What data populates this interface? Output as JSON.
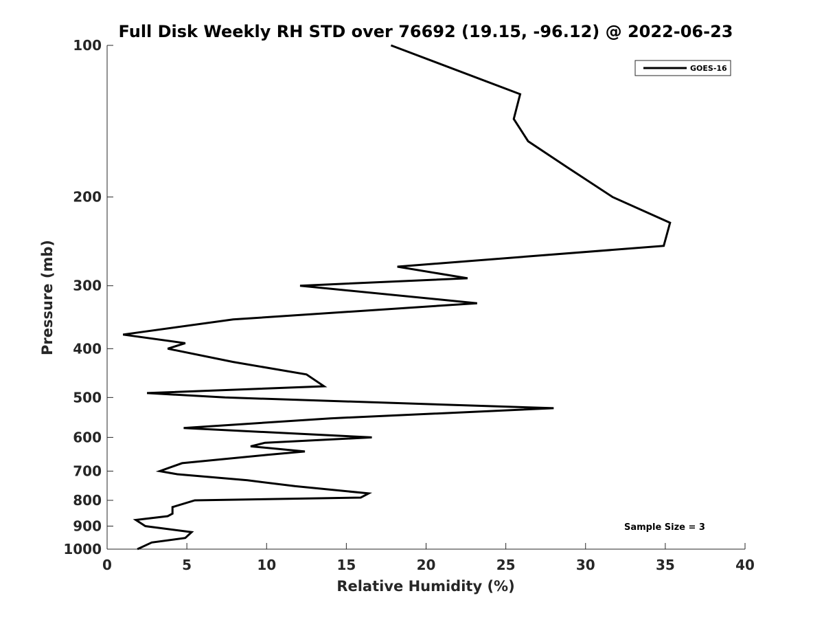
{
  "chart_data": {
    "type": "line",
    "title": "Full Disk Weekly RH STD over 76692 (19.15, -96.12) @ 2022-06-23",
    "xlabel": "Relative Humidity (%)",
    "ylabel": "Pressure (mb)",
    "xlim": [
      0,
      40
    ],
    "ylim": [
      100,
      1000
    ],
    "y_scale": "log",
    "y_reversed": true,
    "x_ticks": [
      0,
      5,
      10,
      15,
      20,
      25,
      30,
      35,
      40
    ],
    "y_ticks": [
      100,
      200,
      300,
      400,
      500,
      600,
      700,
      800,
      900,
      1000
    ],
    "grid": false,
    "legend_position": "top-right",
    "annotation": "Sample Size = 3",
    "colors": {
      "series": "#000000",
      "axis": "#262626"
    },
    "series": [
      {
        "name": "GOES-16",
        "x": [
          17.8,
          25.9,
          25.5,
          26.4,
          28.9,
          31.7,
          35.3,
          34.9,
          18.2,
          22.6,
          12.1,
          23.2,
          7.9,
          1.0,
          4.9,
          3.8,
          7.9,
          12.5,
          13.6,
          2.5,
          7.4,
          28.0,
          14.0,
          4.8,
          16.6,
          9.9,
          9.0,
          12.4,
          10.0,
          4.7,
          3.3,
          4.4,
          8.8,
          11.8,
          16.4,
          15.9,
          5.5,
          4.1,
          4.1,
          3.8,
          1.8,
          2.4,
          5.3,
          4.9,
          2.8,
          1.9
        ],
        "y": [
          100,
          125,
          140,
          155,
          175,
          200,
          225,
          250,
          275,
          290,
          300,
          325,
          350,
          375,
          390,
          400,
          425,
          450,
          475,
          490,
          500,
          525,
          550,
          575,
          600,
          615,
          625,
          640,
          650,
          675,
          700,
          710,
          730,
          750,
          775,
          790,
          800,
          825,
          850,
          860,
          875,
          900,
          925,
          950,
          970,
          1000
        ]
      }
    ]
  }
}
